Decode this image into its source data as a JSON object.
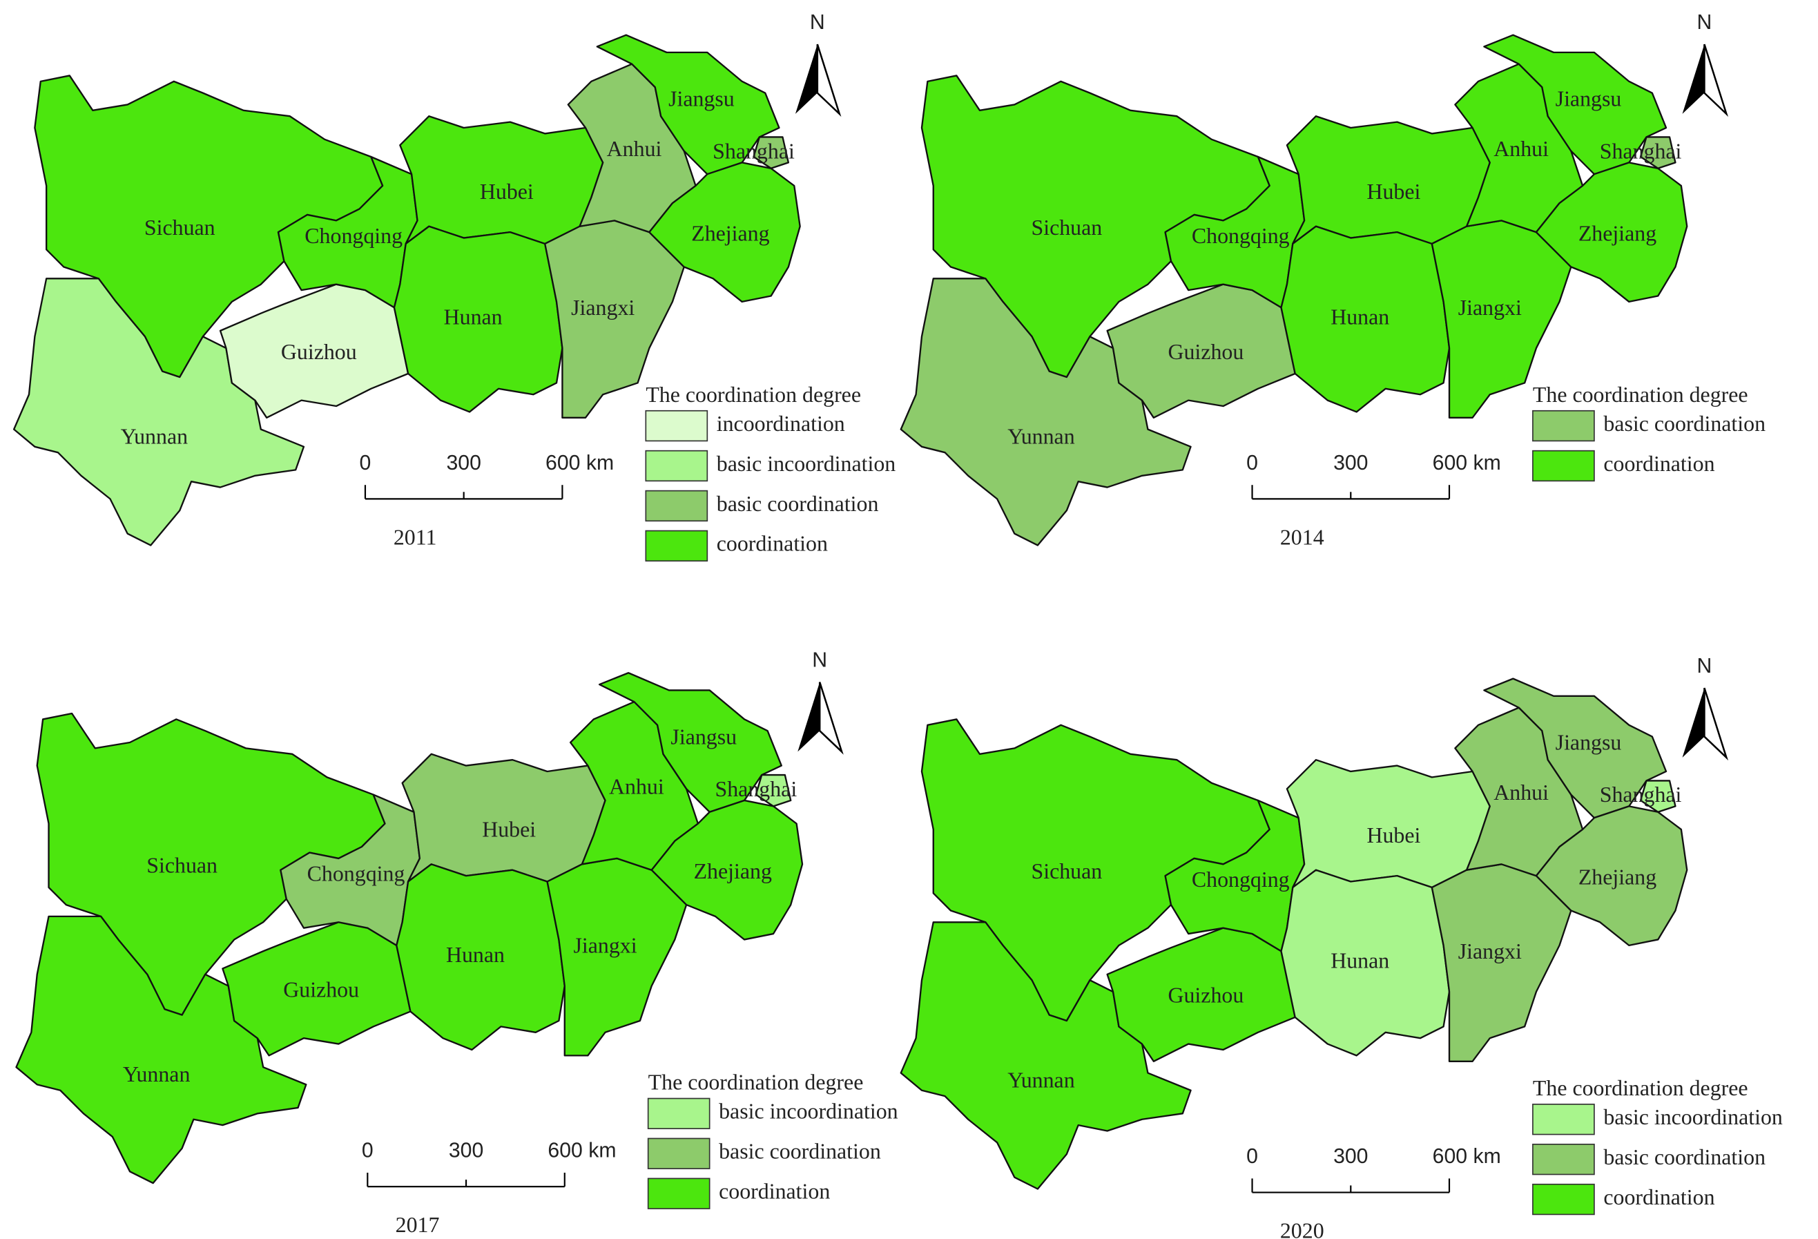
{
  "maps": [
    {
      "year": "2011",
      "north": "N",
      "scale": [
        "0",
        "300",
        "600 km"
      ],
      "legend": {
        "title": "The coordination degree",
        "items": [
          {
            "label": "incoordination",
            "color": "#dcfbcd"
          },
          {
            "label": "basic incoordination",
            "color": "#a8f58c"
          },
          {
            "label": "basic coordination",
            "color": "#8dcb6b"
          },
          {
            "label": "coordination",
            "color": "#4ce60e"
          }
        ]
      },
      "provinces": [
        {
          "name": "Sichuan",
          "class": "coordination"
        },
        {
          "name": "Yunnan",
          "class": "basic incoordination"
        },
        {
          "name": "Guizhou",
          "class": "incoordination"
        },
        {
          "name": "Chongqing",
          "class": "coordination"
        },
        {
          "name": "Hubei",
          "class": "coordination"
        },
        {
          "name": "Hunan",
          "class": "coordination"
        },
        {
          "name": "Jiangxi",
          "class": "basic coordination"
        },
        {
          "name": "Anhui",
          "class": "basic coordination"
        },
        {
          "name": "Jiangsu",
          "class": "coordination"
        },
        {
          "name": "Shanghai",
          "class": "basic coordination"
        },
        {
          "name": "Zhejiang",
          "class": "coordination"
        }
      ]
    },
    {
      "year": "2014",
      "north": "N",
      "scale": [
        "0",
        "300",
        "600 km"
      ],
      "legend": {
        "title": "The coordination degree",
        "items": [
          {
            "label": "basic coordination",
            "color": "#8dcb6b"
          },
          {
            "label": "coordination",
            "color": "#4ce60e"
          }
        ]
      },
      "provinces": [
        {
          "name": "Sichuan",
          "class": "coordination"
        },
        {
          "name": "Yunnan",
          "class": "basic coordination"
        },
        {
          "name": "Guizhou",
          "class": "basic coordination"
        },
        {
          "name": "Chongqing",
          "class": "coordination"
        },
        {
          "name": "Hubei",
          "class": "coordination"
        },
        {
          "name": "Hunan",
          "class": "coordination"
        },
        {
          "name": "Jiangxi",
          "class": "coordination"
        },
        {
          "name": "Anhui",
          "class": "coordination"
        },
        {
          "name": "Jiangsu",
          "class": "coordination"
        },
        {
          "name": "Shanghai",
          "class": "basic coordination"
        },
        {
          "name": "Zhejiang",
          "class": "coordination"
        }
      ]
    },
    {
      "year": "2017",
      "north": "N",
      "scale": [
        "0",
        "300",
        "600 km"
      ],
      "legend": {
        "title": "The coordination degree",
        "items": [
          {
            "label": "basic incoordination",
            "color": "#a8f58c"
          },
          {
            "label": "basic coordination",
            "color": "#8dcb6b"
          },
          {
            "label": "coordination",
            "color": "#4ce60e"
          }
        ]
      },
      "provinces": [
        {
          "name": "Sichuan",
          "class": "coordination"
        },
        {
          "name": "Yunnan",
          "class": "coordination"
        },
        {
          "name": "Guizhou",
          "class": "coordination"
        },
        {
          "name": "Chongqing",
          "class": "basic coordination"
        },
        {
          "name": "Hubei",
          "class": "basic coordination"
        },
        {
          "name": "Hunan",
          "class": "coordination"
        },
        {
          "name": "Jiangxi",
          "class": "coordination"
        },
        {
          "name": "Anhui",
          "class": "coordination"
        },
        {
          "name": "Jiangsu",
          "class": "coordination"
        },
        {
          "name": "Shanghai",
          "class": "basic incoordination"
        },
        {
          "name": "Zhejiang",
          "class": "coordination"
        }
      ]
    },
    {
      "year": "2020",
      "north": "N",
      "scale": [
        "0",
        "300",
        "600 km"
      ],
      "legend": {
        "title": "The coordination degree",
        "items": [
          {
            "label": "basic incoordination",
            "color": "#a8f58c"
          },
          {
            "label": "basic coordination",
            "color": "#8dcb6b"
          },
          {
            "label": "coordination",
            "color": "#4ce60e"
          }
        ]
      },
      "provinces": [
        {
          "name": "Sichuan",
          "class": "coordination"
        },
        {
          "name": "Yunnan",
          "class": "coordination"
        },
        {
          "name": "Guizhou",
          "class": "coordination"
        },
        {
          "name": "Chongqing",
          "class": "coordination"
        },
        {
          "name": "Hubei",
          "class": "basic incoordination"
        },
        {
          "name": "Hunan",
          "class": "basic incoordination"
        },
        {
          "name": "Jiangxi",
          "class": "basic coordination"
        },
        {
          "name": "Anhui",
          "class": "basic coordination"
        },
        {
          "name": "Jiangsu",
          "class": "basic coordination"
        },
        {
          "name": "Shanghai",
          "class": "basic incoordination"
        },
        {
          "name": "Zhejiang",
          "class": "basic coordination"
        }
      ]
    }
  ]
}
